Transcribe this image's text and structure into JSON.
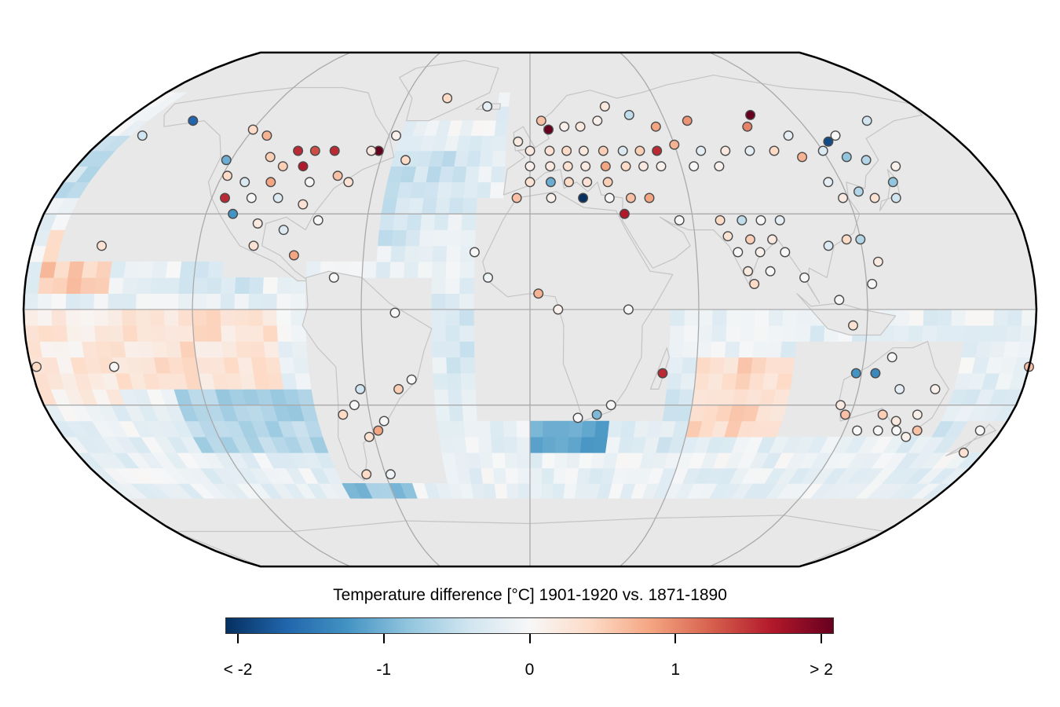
{
  "legend": {
    "title": "Temperature difference [°C] 1901-1920 vs. 1871-1890",
    "ticks": [
      {
        "label": "< -2",
        "value": -2
      },
      {
        "label": "-1",
        "value": -1
      },
      {
        "label": "0",
        "value": 0
      },
      {
        "label": "1",
        "value": 1
      },
      {
        "label": "> 2",
        "value": 2
      }
    ],
    "range": [
      -2,
      2
    ],
    "colorscale": [
      "#053061",
      "#2166ac",
      "#4393c3",
      "#92c5de",
      "#d1e5f0",
      "#f7f7f7",
      "#fddbc7",
      "#f4a582",
      "#d6604d",
      "#b2182b",
      "#67001f"
    ]
  },
  "map": {
    "projection": "robinson",
    "graticule_lon": [
      -120,
      -60,
      0,
      60,
      120
    ],
    "graticule_lat": [
      -30,
      0,
      30
    ],
    "land_color": "#e8e8e8",
    "coast_color": "#c4c4c4",
    "grid_color": "#aaaaaa",
    "outline_color": "#000000"
  },
  "chart_data": {
    "type": "heatmap",
    "title": "Temperature difference [°C] 1901-1920 vs. 1871-1890",
    "variable": "temperature difference",
    "unit": "°C",
    "periods": [
      "1901-1920",
      "1871-1890"
    ],
    "ocean_regions": [
      {
        "lon": [
          -180,
          -130
        ],
        "lat": [
          35,
          55
        ],
        "value": -0.5
      },
      {
        "lon": [
          -150,
          -120
        ],
        "lat": [
          30,
          45
        ],
        "value": -1.0
      },
      {
        "lon": [
          -175,
          -150
        ],
        "lat": [
          5,
          25
        ],
        "value": 0.5
      },
      {
        "lon": [
          -125,
          -95
        ],
        "lat": [
          5,
          25
        ],
        "value": -0.3
      },
      {
        "lon": [
          -60,
          -20
        ],
        "lat": [
          20,
          50
        ],
        "value": -0.4
      },
      {
        "lon": [
          -40,
          0
        ],
        "lat": [
          0,
          30
        ],
        "value": -0.2
      },
      {
        "lon": [
          -30,
          15
        ],
        "lat": [
          -30,
          0
        ],
        "value": -0.3
      },
      {
        "lon": [
          -150,
          -90
        ],
        "lat": [
          -25,
          0
        ],
        "value": 0.3
      },
      {
        "lon": [
          -130,
          -80
        ],
        "lat": [
          -45,
          -25
        ],
        "value": -0.6
      },
      {
        "lon": [
          -80,
          -50
        ],
        "lat": [
          -60,
          -40
        ],
        "value": -0.8
      },
      {
        "lon": [
          0,
          30
        ],
        "lat": [
          -45,
          -35
        ],
        "value": -1.0
      },
      {
        "lon": [
          35,
          60
        ],
        "lat": [
          -45,
          -25
        ],
        "value": -0.3
      },
      {
        "lon": [
          60,
          100
        ],
        "lat": [
          -40,
          -15
        ],
        "value": 0.4
      },
      {
        "lon": [
          100,
          130
        ],
        "lat": [
          -15,
          0
        ],
        "value": -0.2
      },
      {
        "lon": [
          140,
          180
        ],
        "lat": [
          -45,
          -25
        ],
        "value": -0.3
      },
      {
        "lon": [
          150,
          180
        ],
        "lat": [
          20,
          45
        ],
        "value": 0.3
      },
      {
        "lon": [
          120,
          150
        ],
        "lat": [
          30,
          50
        ],
        "value": -0.5
      },
      {
        "lon": [
          -180,
          -150
        ],
        "lat": [
          -30,
          0
        ],
        "value": 0.2
      }
    ],
    "stations": [
      {
        "lon": -150,
        "lat": 60,
        "value": -1.6
      },
      {
        "lon": -165,
        "lat": 55,
        "value": -0.4
      },
      {
        "lon": -120,
        "lat": 57,
        "value": 0.4
      },
      {
        "lon": -112,
        "lat": 55,
        "value": 0.7
      },
      {
        "lon": -95,
        "lat": 50,
        "value": 1.5
      },
      {
        "lon": -88,
        "lat": 50,
        "value": 1.3
      },
      {
        "lon": -80,
        "lat": 50,
        "value": 1.5
      },
      {
        "lon": -62,
        "lat": 50,
        "value": 2.0
      },
      {
        "lon": -105,
        "lat": 48,
        "value": 0.5
      },
      {
        "lon": -98,
        "lat": 45,
        "value": 0.5
      },
      {
        "lon": -90,
        "lat": 45,
        "value": 1.6
      },
      {
        "lon": -75,
        "lat": 42,
        "value": 0.6
      },
      {
        "lon": -122,
        "lat": 47,
        "value": -1.0
      },
      {
        "lon": -118,
        "lat": 42,
        "value": 0.4
      },
      {
        "lon": -110,
        "lat": 40,
        "value": -0.3
      },
      {
        "lon": -100,
        "lat": 40,
        "value": 0.8
      },
      {
        "lon": -85,
        "lat": 40,
        "value": 0.0
      },
      {
        "lon": -70,
        "lat": 40,
        "value": 0.3
      },
      {
        "lon": -115,
        "lat": 35,
        "value": 1.5
      },
      {
        "lon": -105,
        "lat": 35,
        "value": 0.0
      },
      {
        "lon": -95,
        "lat": 35,
        "value": -0.3
      },
      {
        "lon": -85,
        "lat": 33,
        "value": 0.3
      },
      {
        "lon": -110,
        "lat": 30,
        "value": -1.2
      },
      {
        "lon": -100,
        "lat": 27,
        "value": 0.2
      },
      {
        "lon": -90,
        "lat": 25,
        "value": -0.3
      },
      {
        "lon": -78,
        "lat": 28,
        "value": 0.0
      },
      {
        "lon": -100,
        "lat": 20,
        "value": 0.3
      },
      {
        "lon": -85,
        "lat": 17,
        "value": 0.8
      },
      {
        "lon": -65,
        "lat": 50,
        "value": 0.2
      },
      {
        "lon": -57,
        "lat": 55,
        "value": 0.1
      },
      {
        "lon": -50,
        "lat": 47,
        "value": 0.4
      },
      {
        "lon": -40,
        "lat": 68,
        "value": 0.4
      },
      {
        "lon": -20,
        "lat": 65,
        "value": -0.2
      },
      {
        "lon": -70,
        "lat": 10,
        "value": 0.0
      },
      {
        "lon": -48,
        "lat": -1,
        "value": 0.0
      },
      {
        "lon": -20,
        "lat": 18,
        "value": 0.0
      },
      {
        "lon": -15,
        "lat": 10,
        "value": -0.1
      },
      {
        "lon": -5,
        "lat": 35,
        "value": 0.6
      },
      {
        "lon": 5,
        "lat": 60,
        "value": 0.6
      },
      {
        "lon": 8,
        "lat": 57,
        "value": 2.0
      },
      {
        "lon": 15,
        "lat": 58,
        "value": 0.1
      },
      {
        "lon": 22,
        "lat": 58,
        "value": 0.2
      },
      {
        "lon": 30,
        "lat": 60,
        "value": 0.1
      },
      {
        "lon": 35,
        "lat": 65,
        "value": 0.2
      },
      {
        "lon": 45,
        "lat": 62,
        "value": -0.5
      },
      {
        "lon": 55,
        "lat": 58,
        "value": 0.8
      },
      {
        "lon": 70,
        "lat": 60,
        "value": 0.9
      },
      {
        "lon": 100,
        "lat": 62,
        "value": 2.0
      },
      {
        "lon": 95,
        "lat": 58,
        "value": 1.0
      },
      {
        "lon": 110,
        "lat": 55,
        "value": -0.2
      },
      {
        "lon": 125,
        "lat": 53,
        "value": -1.8
      },
      {
        "lon": 130,
        "lat": 55,
        "value": 0.0
      },
      {
        "lon": -5,
        "lat": 53,
        "value": 0.2
      },
      {
        "lon": 0,
        "lat": 50,
        "value": 0.2
      },
      {
        "lon": 8,
        "lat": 50,
        "value": 0.3
      },
      {
        "lon": 15,
        "lat": 50,
        "value": 0.4
      },
      {
        "lon": 22,
        "lat": 50,
        "value": 0.2
      },
      {
        "lon": 30,
        "lat": 50,
        "value": 0.5
      },
      {
        "lon": 38,
        "lat": 50,
        "value": -0.3
      },
      {
        "lon": 45,
        "lat": 50,
        "value": 0.5
      },
      {
        "lon": 52,
        "lat": 50,
        "value": 1.5
      },
      {
        "lon": 60,
        "lat": 52,
        "value": 0.7
      },
      {
        "lon": 70,
        "lat": 50,
        "value": -0.2
      },
      {
        "lon": 80,
        "lat": 50,
        "value": 0.2
      },
      {
        "lon": 90,
        "lat": 50,
        "value": -0.2
      },
      {
        "lon": 100,
        "lat": 50,
        "value": 0.4
      },
      {
        "lon": 110,
        "lat": 48,
        "value": 0.7
      },
      {
        "lon": 120,
        "lat": 50,
        "value": -0.3
      },
      {
        "lon": 128,
        "lat": 48,
        "value": -0.8
      },
      {
        "lon": 135,
        "lat": 47,
        "value": -0.6
      },
      {
        "lon": 0,
        "lat": 45,
        "value": 0.1
      },
      {
        "lon": 8,
        "lat": 45,
        "value": 0.2
      },
      {
        "lon": 15,
        "lat": 45,
        "value": 0.3
      },
      {
        "lon": 22,
        "lat": 45,
        "value": 0.2
      },
      {
        "lon": 30,
        "lat": 45,
        "value": 0.8
      },
      {
        "lon": 38,
        "lat": 45,
        "value": 0.4
      },
      {
        "lon": 45,
        "lat": 45,
        "value": 0.2
      },
      {
        "lon": 52,
        "lat": 45,
        "value": 0.1
      },
      {
        "lon": 65,
        "lat": 45,
        "value": 0.0
      },
      {
        "lon": 75,
        "lat": 45,
        "value": 0.1
      },
      {
        "lon": 0,
        "lat": 40,
        "value": 0.3
      },
      {
        "lon": 8,
        "lat": 40,
        "value": -1.0
      },
      {
        "lon": 15,
        "lat": 40,
        "value": 0.4
      },
      {
        "lon": 22,
        "lat": 40,
        "value": 0.3
      },
      {
        "lon": 30,
        "lat": 40,
        "value": 0.5
      },
      {
        "lon": 8,
        "lat": 35,
        "value": 0.1
      },
      {
        "lon": 20,
        "lat": 35,
        "value": -2.0
      },
      {
        "lon": 30,
        "lat": 35,
        "value": 0.0
      },
      {
        "lon": 38,
        "lat": 35,
        "value": 0.6
      },
      {
        "lon": 45,
        "lat": 35,
        "value": 0.8
      },
      {
        "lon": 35,
        "lat": 30,
        "value": 1.6
      },
      {
        "lon": 55,
        "lat": 28,
        "value": 0.0
      },
      {
        "lon": 70,
        "lat": 28,
        "value": 0.4
      },
      {
        "lon": 78,
        "lat": 28,
        "value": -0.5
      },
      {
        "lon": 85,
        "lat": 28,
        "value": 0.0
      },
      {
        "lon": 92,
        "lat": 28,
        "value": -0.2
      },
      {
        "lon": 72,
        "lat": 23,
        "value": 0.3
      },
      {
        "lon": 80,
        "lat": 22,
        "value": 0.5
      },
      {
        "lon": 88,
        "lat": 22,
        "value": 0.2
      },
      {
        "lon": 75,
        "lat": 18,
        "value": 0.0
      },
      {
        "lon": 83,
        "lat": 18,
        "value": 0.1
      },
      {
        "lon": 92,
        "lat": 18,
        "value": 0.0
      },
      {
        "lon": 78,
        "lat": 12,
        "value": 0.2
      },
      {
        "lon": 86,
        "lat": 12,
        "value": 0.0
      },
      {
        "lon": 80,
        "lat": 8,
        "value": 0.4
      },
      {
        "lon": 98,
        "lat": 10,
        "value": 0.0
      },
      {
        "lon": 108,
        "lat": 20,
        "value": -0.3
      },
      {
        "lon": 115,
        "lat": 22,
        "value": 0.4
      },
      {
        "lon": 120,
        "lat": 22,
        "value": -0.6
      },
      {
        "lon": 125,
        "lat": 15,
        "value": 0.2
      },
      {
        "lon": 122,
        "lat": 8,
        "value": 0.0
      },
      {
        "lon": 110,
        "lat": 3,
        "value": 0.0
      },
      {
        "lon": 118,
        "lat": 35,
        "value": 0.2
      },
      {
        "lon": 125,
        "lat": 37,
        "value": -0.6
      },
      {
        "lon": 130,
        "lat": 35,
        "value": 0.3
      },
      {
        "lon": 138,
        "lat": 35,
        "value": -0.4
      },
      {
        "lon": 140,
        "lat": 40,
        "value": -0.8
      },
      {
        "lon": 115,
        "lat": 40,
        "value": -0.2
      },
      {
        "lon": 145,
        "lat": 45,
        "value": 0.1
      },
      {
        "lon": 150,
        "lat": 60,
        "value": -0.4
      },
      {
        "lon": 3,
        "lat": 5,
        "value": 0.7
      },
      {
        "lon": 10,
        "lat": 0,
        "value": 0.1
      },
      {
        "lon": 35,
        "lat": 0,
        "value": 0.0
      },
      {
        "lon": 48,
        "lat": -20,
        "value": 1.5
      },
      {
        "lon": 115,
        "lat": -5,
        "value": 0.3
      },
      {
        "lon": 130,
        "lat": -15,
        "value": 0.0
      },
      {
        "lon": 118,
        "lat": -20,
        "value": -1.2
      },
      {
        "lon": 125,
        "lat": -20,
        "value": -1.3
      },
      {
        "lon": 135,
        "lat": -25,
        "value": -0.2
      },
      {
        "lon": 115,
        "lat": -30,
        "value": 0.2
      },
      {
        "lon": 148,
        "lat": -25,
        "value": 0.1
      },
      {
        "lon": 145,
        "lat": -33,
        "value": 0.1
      },
      {
        "lon": 138,
        "lat": -35,
        "value": 0.2
      },
      {
        "lon": 132,
        "lat": -33,
        "value": 0.5
      },
      {
        "lon": 125,
        "lat": -38,
        "value": 0.0
      },
      {
        "lon": 133,
        "lat": -38,
        "value": 0.0
      },
      {
        "lon": 140,
        "lat": -38,
        "value": 0.0
      },
      {
        "lon": 148,
        "lat": -38,
        "value": 0.6
      },
      {
        "lon": 118,
        "lat": -33,
        "value": 0.6
      },
      {
        "lon": 145,
        "lat": -40,
        "value": 0.1
      },
      {
        "lon": 172,
        "lat": -38,
        "value": 0.0
      },
      {
        "lon": 172,
        "lat": -45,
        "value": 0.3
      },
      {
        "lon": -178,
        "lat": -18,
        "value": 0.4
      },
      {
        "lon": -62,
        "lat": -25,
        "value": -0.4
      },
      {
        "lon": -65,
        "lat": -30,
        "value": 0.0
      },
      {
        "lon": -70,
        "lat": -33,
        "value": 0.4
      },
      {
        "lon": -48,
        "lat": -25,
        "value": 0.5
      },
      {
        "lon": -43,
        "lat": -22,
        "value": 0.0
      },
      {
        "lon": -55,
        "lat": -35,
        "value": 0.0
      },
      {
        "lon": -58,
        "lat": -38,
        "value": 0.8
      },
      {
        "lon": -62,
        "lat": -40,
        "value": 0.3
      },
      {
        "lon": -68,
        "lat": -52,
        "value": 0.4
      },
      {
        "lon": -58,
        "lat": -52,
        "value": -0.1
      },
      {
        "lon": 18,
        "lat": -34,
        "value": 0.0
      },
      {
        "lon": 25,
        "lat": -33,
        "value": -0.9
      },
      {
        "lon": 30,
        "lat": -30,
        "value": 0.0
      },
      {
        "lon": -150,
        "lat": -18,
        "value": 0.0
      },
      {
        "lon": -155,
        "lat": 20,
        "value": 0.3
      },
      {
        "lon": 180,
        "lat": -18,
        "value": 0.6
      }
    ]
  }
}
